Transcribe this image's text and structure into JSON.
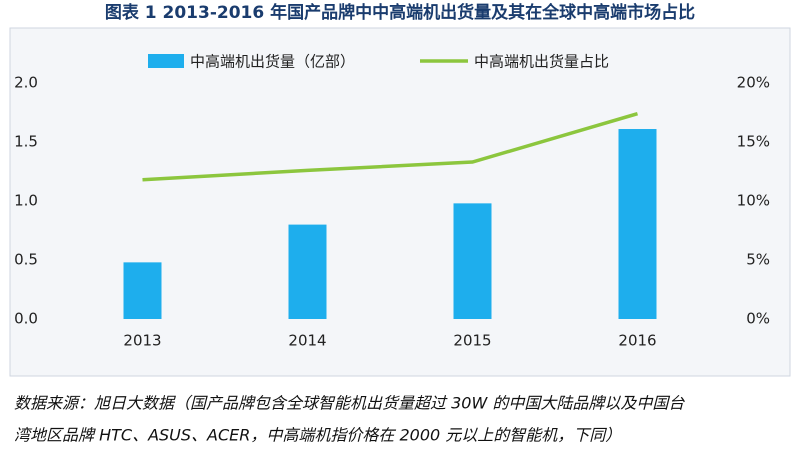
{
  "chart_data": {
    "type": "bar",
    "title": "图表 1   2013-2016 年国产品牌中中高端机出货量及其在全球中高端市场占比",
    "categories": [
      "2013",
      "2014",
      "2015",
      "2016"
    ],
    "series": [
      {
        "name": "中高端机出货量（亿部）",
        "type": "bar",
        "color": "#1eaeed",
        "values": [
          0.48,
          0.8,
          0.98,
          1.61
        ]
      },
      {
        "name": "中高端机出货量占比",
        "type": "line",
        "axis": "y2",
        "color": "#8cc63e",
        "values": [
          11.8,
          12.6,
          13.3,
          17.4
        ]
      }
    ],
    "ylim": [
      0,
      2
    ],
    "yticks": [
      {
        "value": 0,
        "label": "0.0"
      },
      {
        "value": 0.5,
        "label": "0.5"
      },
      {
        "value": 1,
        "label": "1.0"
      },
      {
        "value": 1.5,
        "label": "1.5"
      },
      {
        "value": 2,
        "label": "2.0"
      }
    ],
    "y2lim": [
      0,
      20
    ],
    "y2ticks": [
      {
        "value": 0,
        "label": "0%"
      },
      {
        "value": 5,
        "label": "5%"
      },
      {
        "value": 10,
        "label": "10%"
      },
      {
        "value": 15,
        "label": "15%"
      },
      {
        "value": 20,
        "label": "20%"
      }
    ],
    "grid": false,
    "note": [
      "数据来源：旭日大数据（国产品牌包含全球智能机出货量超过 30W 的中国大陆品牌以及中国台",
      "湾地区品牌 HTC、ASUS、ACER，中高端机指价格在 2000 元以上的智能机，下同）"
    ]
  }
}
